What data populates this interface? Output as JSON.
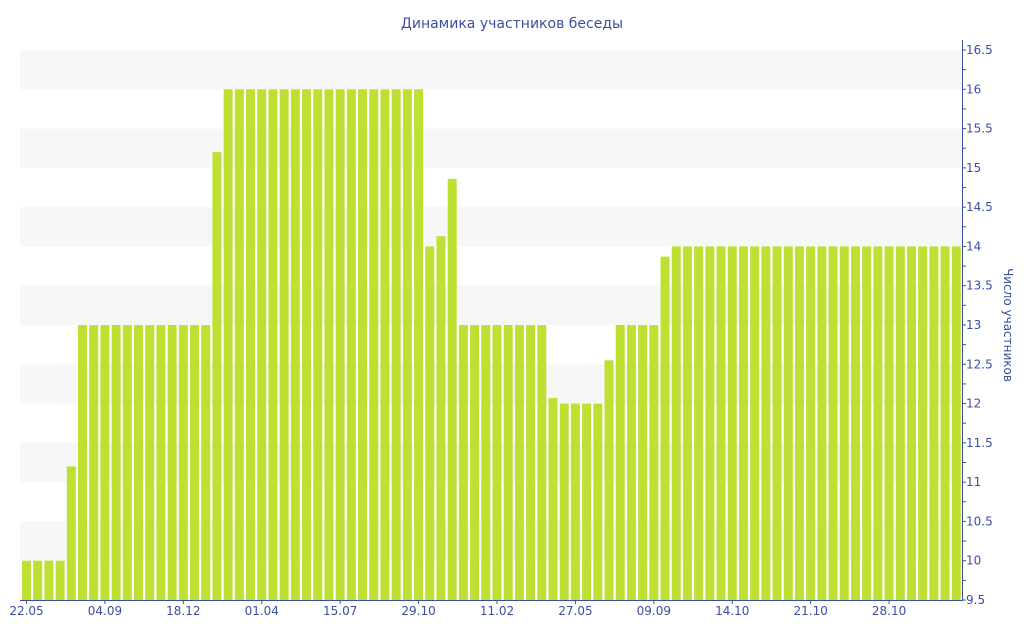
{
  "chart_data": {
    "type": "bar",
    "title": "Динамика участников беседы",
    "xlabel": "",
    "ylabel": "Число участников",
    "ylim": [
      9.5,
      16.5
    ],
    "y_ticks": [
      "9.5",
      "10",
      "10.5",
      "11",
      "11.5",
      "12",
      "12.5",
      "13",
      "13.5",
      "14",
      "14.5",
      "15",
      "15.5",
      "16",
      "16.5"
    ],
    "y_axis_position": "right",
    "grid": "alternating horizontal bands",
    "x_tick_labels": [
      "22.05",
      "04.09",
      "18.12",
      "01.04",
      "15.07",
      "29.10",
      "11.02",
      "27.05",
      "09.09",
      "14.10",
      "21.10",
      "28.10"
    ],
    "x_tick_every_n_bars": 7,
    "values": [
      10,
      10,
      10,
      10,
      11.2,
      13,
      13,
      13,
      13,
      13,
      13,
      13,
      13,
      13,
      13,
      13,
      13,
      15.2,
      16,
      16,
      16,
      16,
      16,
      16,
      16,
      16,
      16,
      16,
      16,
      16,
      16,
      16,
      16,
      16,
      16,
      16,
      14,
      14.13,
      14.86,
      13,
      13,
      13,
      13,
      13,
      13,
      13,
      13,
      12.07,
      12,
      12,
      12,
      12,
      12.55,
      13,
      13,
      13,
      13,
      13.87,
      14,
      14,
      14,
      14,
      14,
      14,
      14,
      14,
      14,
      14,
      14,
      14,
      14,
      14,
      14,
      14,
      14,
      14,
      14,
      14,
      14,
      14,
      14,
      14,
      14,
      14
    ],
    "colors": {
      "bar": "#bde032",
      "axis": "#3b4fa0",
      "band": "#f7f7f7"
    }
  }
}
